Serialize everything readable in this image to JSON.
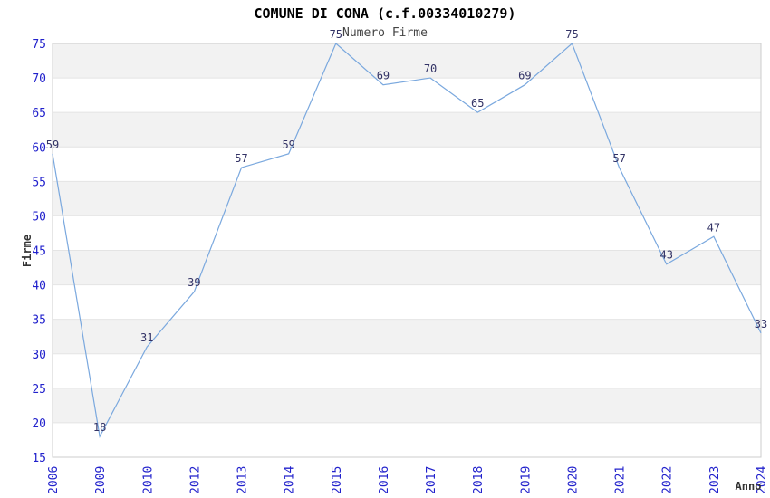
{
  "chart_data": {
    "type": "line",
    "title": "COMUNE DI CONA (c.f.00334010279)",
    "subtitle": "Numero Firme",
    "xlabel": "Anno",
    "ylabel": "Firme",
    "categories": [
      "2006",
      "2009",
      "2010",
      "2012",
      "2013",
      "2014",
      "2015",
      "2016",
      "2017",
      "2018",
      "2019",
      "2020",
      "2021",
      "2022",
      "2023",
      "2024"
    ],
    "series": [
      {
        "name": "Numero Firme",
        "values": [
          59,
          18,
          31,
          39,
          57,
          59,
          75,
          69,
          70,
          65,
          69,
          75,
          57,
          43,
          47,
          33
        ]
      }
    ],
    "data_labels_shown": true,
    "ylim": [
      15,
      75
    ],
    "ytick_step": 5,
    "yticks": [
      15,
      20,
      25,
      30,
      35,
      40,
      45,
      50,
      55,
      60,
      65,
      70,
      75
    ],
    "legend": "none",
    "grid": "horizontal-alternating-bands",
    "x_tick_rotation_deg": -90,
    "colors": {
      "line": "#7AA8DE",
      "tick_label": "#2222CC",
      "data_label": "#333366",
      "title": "#000000",
      "subtitle": "#444444",
      "axis_label": "#333333",
      "band_gray": "#F2F2F2",
      "band_white": "#FFFFFF",
      "grid_line": "#E4E4E4",
      "plot_border": "#CCCCCC",
      "background": "#FFFFFF"
    }
  }
}
